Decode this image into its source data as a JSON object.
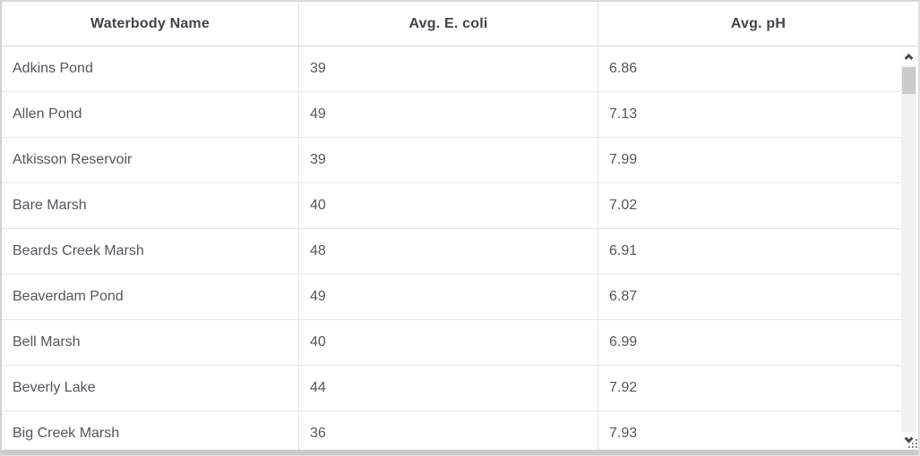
{
  "table": {
    "columns": [
      {
        "label": "Waterbody Name"
      },
      {
        "label": "Avg. E. coli"
      },
      {
        "label": "Avg. pH"
      }
    ],
    "rows": [
      {
        "name": "Adkins Pond",
        "ecoli": "39",
        "ph": "6.86"
      },
      {
        "name": "Allen Pond",
        "ecoli": "49",
        "ph": "7.13"
      },
      {
        "name": "Atkisson Reservoir",
        "ecoli": "39",
        "ph": "7.99"
      },
      {
        "name": "Bare Marsh",
        "ecoli": "40",
        "ph": "7.02"
      },
      {
        "name": "Beards Creek Marsh",
        "ecoli": "48",
        "ph": "6.91"
      },
      {
        "name": "Beaverdam Pond",
        "ecoli": "49",
        "ph": "6.87"
      },
      {
        "name": "Bell Marsh",
        "ecoli": "40",
        "ph": "6.99"
      },
      {
        "name": "Beverly Lake",
        "ecoli": "44",
        "ph": "7.92"
      },
      {
        "name": "Big Creek Marsh",
        "ecoli": "36",
        "ph": "7.93"
      }
    ]
  },
  "scrollbar": {
    "up_icon": "chevron-up",
    "down_icon": "chevron-down",
    "thumb_visible": true
  },
  "corner": {
    "resize_grip_icon": "drag-dots"
  },
  "colors": {
    "body_text": "#53565a",
    "header_text": "#414449",
    "row_border": "#e6e6e6",
    "column_border": "#e0e0e0",
    "outer_border": "#d2d2d2",
    "scrollbar_track": "#f1f1f1",
    "scrollbar_thumb": "#cbcbcb",
    "bottom_bar": "#c9c9c9"
  }
}
